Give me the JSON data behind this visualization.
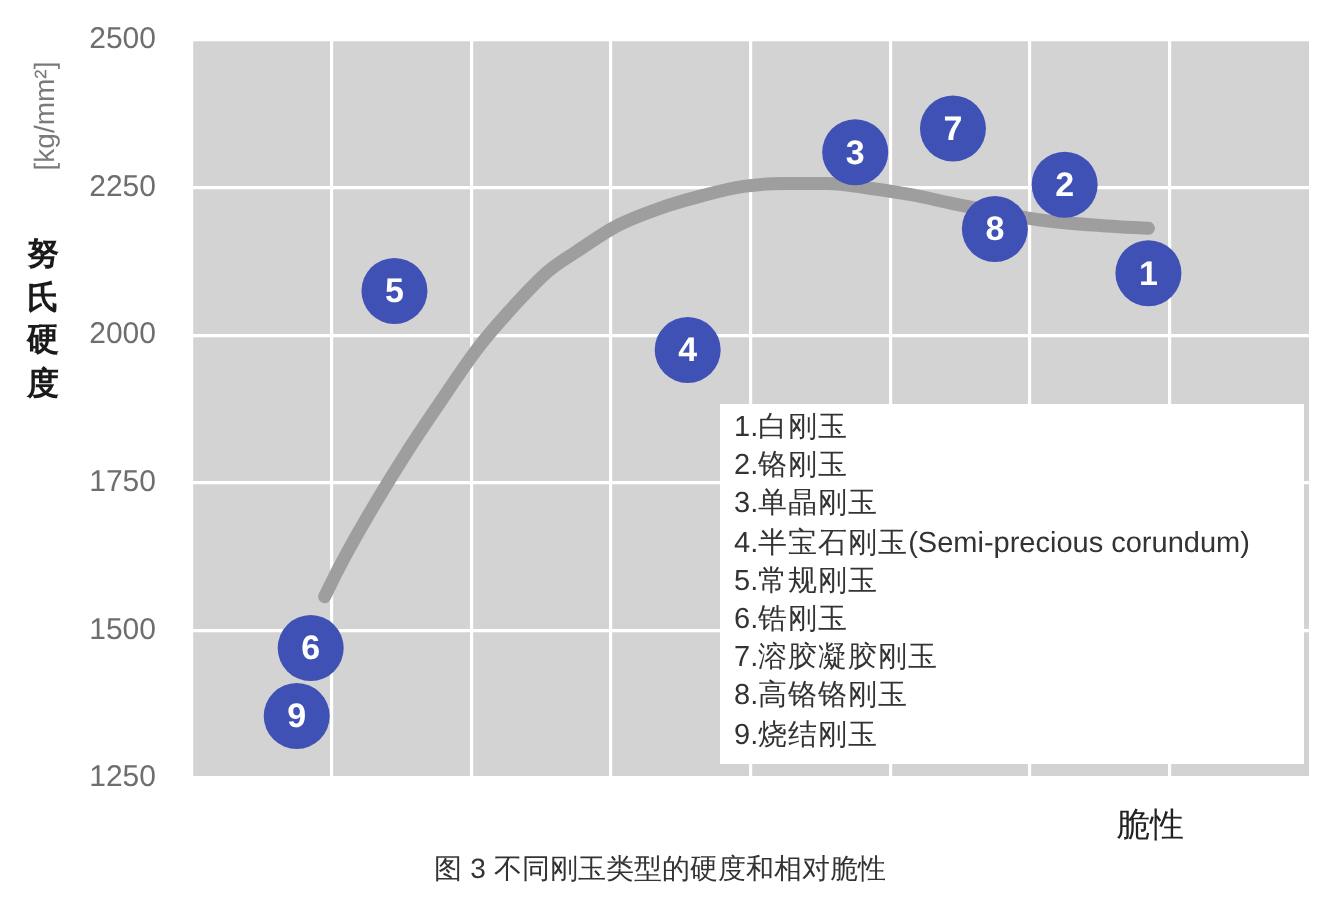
{
  "chart_data": {
    "type": "scatter",
    "xlabel": "脆性",
    "ylabel": "努氏硬度 [kg/mm²]",
    "categories": [
      null,
      null,
      null,
      null,
      null,
      null,
      null,
      null,
      null,
      null,
      null,
      null,
      null,
      null,
      null,
      null,
      null,
      null,
      null,
      null,
      null,
      null,
      null,
      null,
      null,
      null,
      null,
      null,
      null,
      null,
      null,
      null,
      null,
      null,
      null,
      null,
      null,
      null,
      null,
      null,
      null,
      null,
      null,
      null,
      null,
      null,
      null,
      null,
      null,
      null,
      null,
      null,
      null,
      null,
      null,
      null,
      null,
      null,
      null,
      null,
      null,
      null,
      null,
      null,
      null,
      null,
      null,
      null,
      null,
      null,
      null,
      null,
      null,
      null,
      null,
      null,
      null,
      null,
      null,
      null
    ],
    "ylim": [
      1250,
      2500
    ],
    "yticks": [
      1250,
      1500,
      1750,
      2000,
      2250,
      2500
    ],
    "grid": true,
    "tick_labels": "y",
    "series": [
      {
        "name": "1",
        "color": "#3f51b5",
        "marker": "circle",
        "values": [
          null,
          null,
          null,
          null,
          null,
          null,
          null,
          null,
          null,
          null,
          null,
          null,
          null,
          null,
          null,
          null,
          null,
          null,
          null,
          null,
          null,
          null,
          null,
          null,
          null,
          null,
          null,
          null,
          null,
          null,
          null,
          null,
          null,
          null,
          null,
          null,
          null,
          null,
          null,
          null,
          null,
          null,
          null,
          null,
          null,
          null,
          null,
          null,
          null,
          null,
          null,
          null,
          null,
          null,
          null,
          null,
          null,
          null,
          null,
          null,
          null,
          null,
          null,
          null,
          null,
          null,
          null,
          null,
          2105,
          null,
          null,
          null,
          null,
          null,
          null,
          null,
          null,
          null,
          null,
          null
        ]
      },
      {
        "name": "2",
        "color": "#3f51b5",
        "marker": "circle",
        "values": [
          null,
          null,
          null,
          null,
          null,
          null,
          null,
          null,
          null,
          null,
          null,
          null,
          null,
          null,
          null,
          null,
          null,
          null,
          null,
          null,
          null,
          null,
          null,
          null,
          null,
          null,
          null,
          null,
          null,
          null,
          null,
          null,
          null,
          null,
          null,
          null,
          null,
          null,
          null,
          null,
          null,
          null,
          null,
          null,
          null,
          null,
          null,
          null,
          null,
          null,
          null,
          null,
          null,
          null,
          null,
          null,
          null,
          null,
          null,
          null,
          null,
          null,
          2255,
          null,
          null,
          null,
          null,
          null,
          null,
          null,
          null,
          null,
          null,
          null,
          null,
          null,
          null,
          null,
          null,
          null
        ]
      },
      {
        "name": "3",
        "color": "#3f51b5",
        "marker": "circle",
        "values": [
          null,
          null,
          null,
          null,
          null,
          null,
          null,
          null,
          null,
          null,
          null,
          null,
          null,
          null,
          null,
          null,
          null,
          null,
          null,
          null,
          null,
          null,
          null,
          null,
          null,
          null,
          null,
          null,
          null,
          null,
          null,
          null,
          null,
          null,
          null,
          null,
          null,
          null,
          null,
          null,
          null,
          null,
          null,
          null,
          null,
          null,
          null,
          2310,
          null,
          null,
          null,
          null,
          null,
          null,
          null,
          null,
          null,
          null,
          null,
          null,
          null,
          null,
          null,
          null,
          null,
          null,
          null,
          null,
          null,
          null,
          null,
          null,
          null,
          null,
          null,
          null,
          null,
          null,
          null,
          null
        ]
      },
      {
        "name": "4",
        "color": "#3f51b5",
        "marker": "circle",
        "values": [
          null,
          null,
          null,
          null,
          null,
          null,
          null,
          null,
          null,
          null,
          null,
          null,
          null,
          null,
          null,
          null,
          null,
          null,
          null,
          null,
          null,
          null,
          null,
          null,
          null,
          null,
          null,
          null,
          null,
          null,
          null,
          null,
          null,
          null,
          null,
          1975,
          null,
          null,
          null,
          null,
          null,
          null,
          null,
          null,
          null,
          null,
          null,
          null,
          null,
          null,
          null,
          null,
          null,
          null,
          null,
          null,
          null,
          null,
          null,
          null,
          null,
          null,
          null,
          null,
          null,
          null,
          null,
          null,
          null,
          null,
          null,
          null,
          null,
          null,
          null,
          null,
          null,
          null,
          null,
          null
        ]
      },
      {
        "name": "5",
        "color": "#3f51b5",
        "marker": "circle",
        "values": [
          null,
          null,
          null,
          null,
          null,
          null,
          null,
          null,
          null,
          null,
          null,
          null,
          null,
          null,
          2075,
          null,
          null,
          null,
          null,
          null,
          null,
          null,
          null,
          null,
          null,
          null,
          null,
          null,
          null,
          null,
          null,
          null,
          null,
          null,
          null,
          null,
          null,
          null,
          null,
          null,
          null,
          null,
          null,
          null,
          null,
          null,
          null,
          null,
          null,
          null,
          null,
          null,
          null,
          null,
          null,
          null,
          null,
          null,
          null,
          null,
          null,
          null,
          null,
          null,
          null,
          null,
          null,
          null,
          null,
          null,
          null,
          null,
          null,
          null,
          null,
          null,
          null,
          null,
          null,
          null
        ]
      },
      {
        "name": "6",
        "color": "#3f51b5",
        "marker": "circle",
        "values": [
          null,
          null,
          null,
          null,
          null,
          null,
          null,
          null,
          1470,
          null,
          null,
          null,
          null,
          null,
          null,
          null,
          null,
          null,
          null,
          null,
          null,
          null,
          null,
          null,
          null,
          null,
          null,
          null,
          null,
          null,
          null,
          null,
          null,
          null,
          null,
          null,
          null,
          null,
          null,
          null,
          null,
          null,
          null,
          null,
          null,
          null,
          null,
          null,
          null,
          null,
          null,
          null,
          null,
          null,
          null,
          null,
          null,
          null,
          null,
          null,
          null,
          null,
          null,
          null,
          null,
          null,
          null,
          null,
          null,
          null,
          null,
          null,
          null,
          null,
          null,
          null,
          null,
          null,
          null,
          null
        ]
      },
      {
        "name": "7",
        "color": "#3f51b5",
        "marker": "circle",
        "values": [
          null,
          null,
          null,
          null,
          null,
          null,
          null,
          null,
          null,
          null,
          null,
          null,
          null,
          null,
          null,
          null,
          null,
          null,
          null,
          null,
          null,
          null,
          null,
          null,
          null,
          null,
          null,
          null,
          null,
          null,
          null,
          null,
          null,
          null,
          null,
          null,
          null,
          null,
          null,
          null,
          null,
          null,
          null,
          null,
          null,
          null,
          null,
          null,
          null,
          null,
          null,
          null,
          null,
          null,
          2350,
          null,
          null,
          null,
          null,
          null,
          null,
          null,
          null,
          null,
          null,
          null,
          null,
          null,
          null,
          null,
          null,
          null,
          null,
          null,
          null,
          null,
          null,
          null,
          null,
          null
        ]
      },
      {
        "name": "8",
        "color": "#3f51b5",
        "marker": "circle",
        "values": [
          null,
          null,
          null,
          null,
          null,
          null,
          null,
          null,
          null,
          null,
          null,
          null,
          null,
          null,
          null,
          null,
          null,
          null,
          null,
          null,
          null,
          null,
          null,
          null,
          null,
          null,
          null,
          null,
          null,
          null,
          null,
          null,
          null,
          null,
          null,
          null,
          null,
          null,
          null,
          null,
          null,
          null,
          null,
          null,
          null,
          null,
          null,
          null,
          null,
          null,
          null,
          null,
          null,
          null,
          null,
          null,
          null,
          2180,
          null,
          null,
          null,
          null,
          null,
          null,
          null,
          null,
          null,
          null,
          null,
          null,
          null,
          null,
          null,
          null,
          null,
          null,
          null,
          null,
          null,
          null
        ]
      },
      {
        "name": "9",
        "color": "#3f51b5",
        "marker": "circle",
        "values": [
          null,
          null,
          null,
          null,
          null,
          null,
          null,
          1355,
          null,
          null,
          null,
          null,
          null,
          null,
          null,
          null,
          null,
          null,
          null,
          null,
          null,
          null,
          null,
          null,
          null,
          null,
          null,
          null,
          null,
          null,
          null,
          null,
          null,
          null,
          null,
          null,
          null,
          null,
          null,
          null,
          null,
          null,
          null,
          null,
          null,
          null,
          null,
          null,
          null,
          null,
          null,
          null,
          null,
          null,
          null,
          null,
          null,
          null,
          null,
          null,
          null,
          null,
          null,
          null,
          null,
          null,
          null,
          null,
          null,
          null,
          null,
          null,
          null,
          null,
          null,
          null,
          null,
          null,
          null,
          null
        ]
      },
      {
        "type": "line",
        "color": "#9e9e9e",
        "marker": "none",
        "values": [
          null,
          null,
          null,
          null,
          null,
          null,
          null,
          null,
          null,
          1557,
          1605,
          null,
          1690,
          null,
          null,
          1806,
          null,
          1877,
          null,
          null,
          1979,
          null,
          2035,
          null,
          null,
          2108,
          null,
          2141,
          null,
          null,
          2186,
          null,
          null,
          2215,
          null,
          null,
          2236,
          null,
          null,
          2252,
          null,
          null,
          2257,
          null,
          null,
          2257,
          null,
          null,
          2249,
          null,
          null,
          2238,
          null,
          null,
          2223,
          null,
          null,
          null,
          null,
          null,
          2196,
          null,
          null,
          null,
          null,
          2185,
          null,
          null,
          2181,
          null,
          null,
          null,
          null,
          null,
          null,
          null,
          null,
          null,
          null,
          null
        ]
      }
    ],
    "annotations": [
      "图 3 不同刚玉类型的硬度和相对脆性",
      "1.白刚玉",
      "2.铬刚玉",
      "3.单晶刚玉",
      "4.半宝石刚玉(Semi-precious corundum)",
      "5.常规刚玉",
      "6.锆刚玉",
      "7.溶胶凝胶刚玉",
      "8.高铬铬刚玉",
      "9.烧结刚玉"
    ]
  }
}
